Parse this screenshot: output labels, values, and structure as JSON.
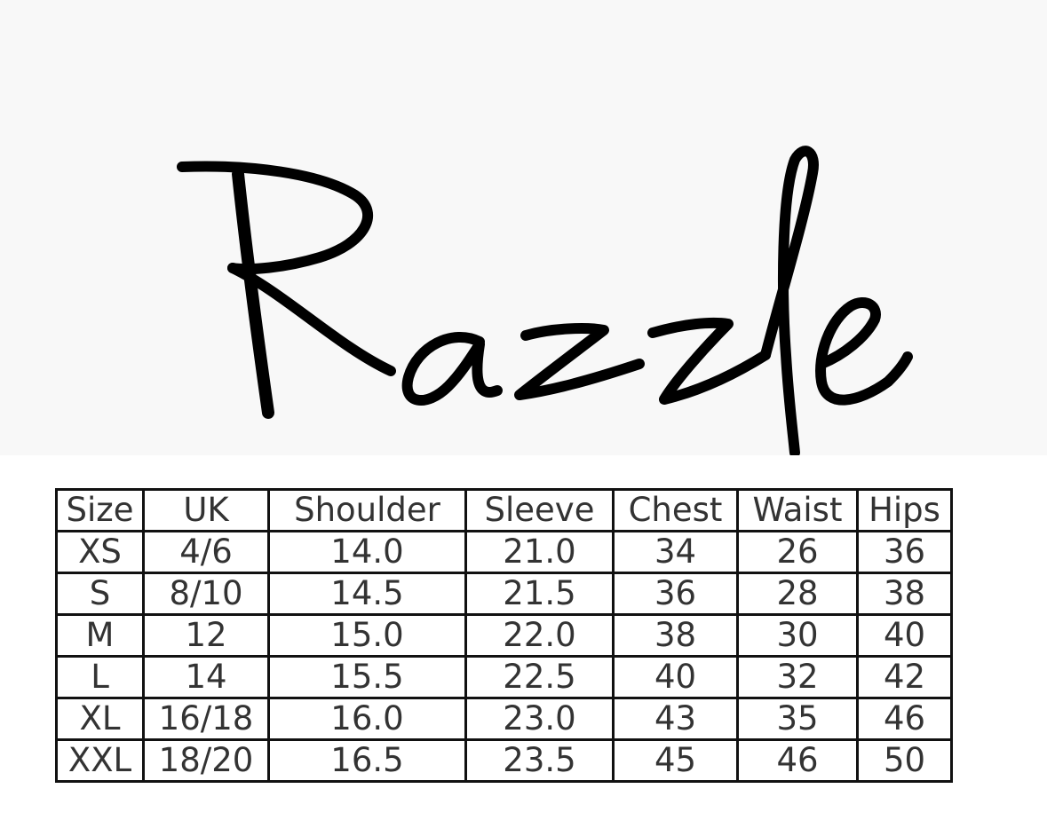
{
  "logo": {
    "text": "Razzle"
  },
  "size_chart": {
    "headers": [
      "Size",
      "UK",
      "Shoulder",
      "Sleeve",
      "Chest",
      "Waist",
      "Hips"
    ],
    "rows": [
      [
        "XS",
        "4/6",
        "14.0",
        "21.0",
        "34",
        "26",
        "36"
      ],
      [
        "S",
        "8/10",
        "14.5",
        "21.5",
        "36",
        "28",
        "38"
      ],
      [
        "M",
        "12",
        "15.0",
        "22.0",
        "38",
        "30",
        "40"
      ],
      [
        "L",
        "14",
        "15.5",
        "22.5",
        "40",
        "32",
        "42"
      ],
      [
        "XL",
        "16/18",
        "16.0",
        "23.0",
        "43",
        "35",
        "46"
      ],
      [
        "XXL",
        "18/20",
        "16.5",
        "23.5",
        "45",
        "46",
        "50"
      ]
    ]
  }
}
